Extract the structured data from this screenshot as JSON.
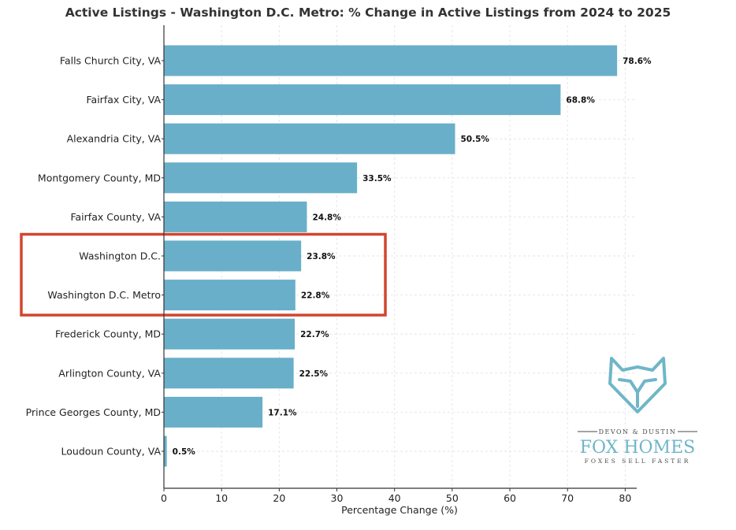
{
  "chart_data": {
    "type": "bar",
    "orientation": "horizontal",
    "title": "Active Listings - Washington D.C. Metro: % Change in Active Listings from 2024 to 2025",
    "xlabel": "Percentage Change (%)",
    "ylabel": "",
    "xlim": [
      0,
      82
    ],
    "xticks": [
      0,
      10,
      20,
      30,
      40,
      50,
      60,
      70,
      80
    ],
    "grid": true,
    "categories": [
      "Falls Church City, VA",
      "Fairfax City, VA",
      "Alexandria City, VA",
      "Montgomery County, MD",
      "Fairfax County, VA",
      "Washington D.C.",
      "Washington D.C. Metro",
      "Frederick County, MD",
      "Arlington County, VA",
      "Prince Georges County, MD",
      "Loudoun County, VA"
    ],
    "values": [
      78.6,
      68.8,
      50.5,
      33.5,
      24.8,
      23.8,
      22.8,
      22.7,
      22.5,
      17.1,
      0.5
    ],
    "value_labels": [
      "78.6%",
      "68.8%",
      "50.5%",
      "33.5%",
      "24.8%",
      "23.8%",
      "22.8%",
      "22.7%",
      "22.5%",
      "17.1%",
      "0.5%"
    ],
    "highlighted_categories": [
      "Washington D.C.",
      "Washington D.C. Metro"
    ],
    "bar_color": "#69afc9",
    "highlight_box_color": "#d2462e"
  },
  "logo": {
    "brand_top": "DEVON & DUSTIN",
    "brand_main": "FOX HOMES",
    "tagline": "FOXES SELL FASTER",
    "icon": "fox-head-icon",
    "color": "#6fb6c8"
  }
}
